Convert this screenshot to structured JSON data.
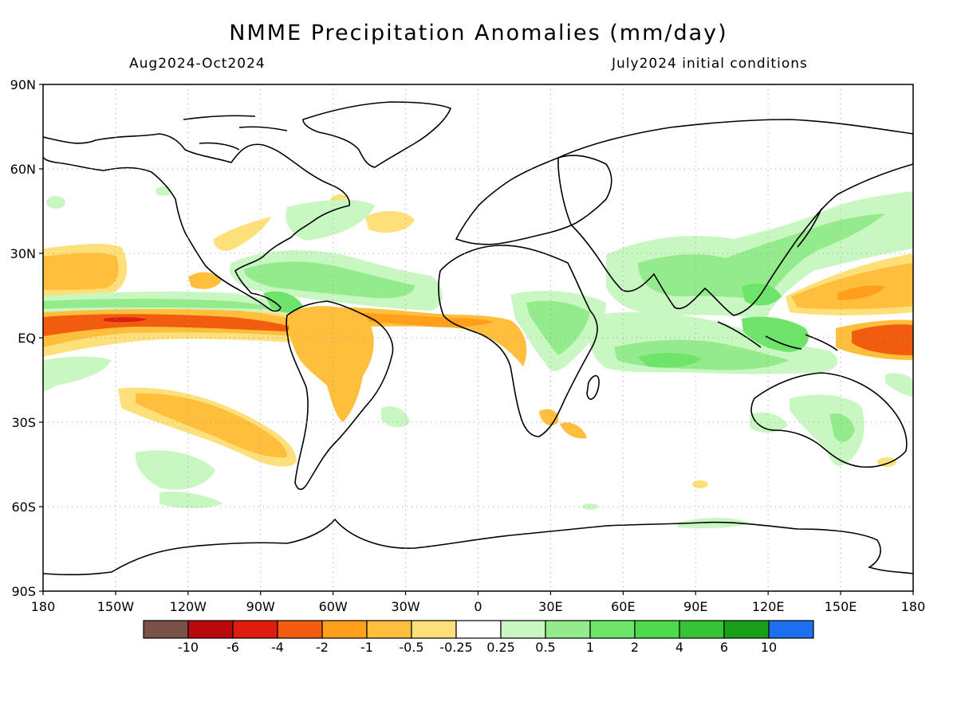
{
  "title": "NMME Precipitation Anomalies (mm/day)",
  "period": "Aug2024-Oct2024",
  "init": "July2024 initial conditions",
  "lat_ticks": [
    "90N",
    "60N",
    "30N",
    "EQ",
    "30S",
    "60S",
    "90S"
  ],
  "lon_ticks": [
    "180",
    "150W",
    "120W",
    "90W",
    "60W",
    "30W",
    "0",
    "30E",
    "60E",
    "90E",
    "120E",
    "150E",
    "180"
  ],
  "colorbar": {
    "colors": [
      "#7a5245",
      "#b80a0a",
      "#dd1e0e",
      "#f25c0f",
      "#ff9f1a",
      "#ffbe3c",
      "#fde07a",
      "#ffffff",
      "#c9f7c2",
      "#93eb8c",
      "#6ee46b",
      "#4ddb4c",
      "#36c436",
      "#17a11a",
      "#1e6ff0"
    ],
    "labels": [
      "-10",
      "-6",
      "-4",
      "-2",
      "-1",
      "-0.5",
      "-0.25",
      "0.25",
      "0.5",
      "1",
      "2",
      "4",
      "6",
      "10"
    ]
  },
  "colors": {
    "dry_light": "#fde07a",
    "dry_med": "#ffbe3c",
    "dry_strong": "#ff9f1a",
    "dry_very": "#f25c0f",
    "dry_extreme": "#dd1e0e",
    "wet_light": "#c9f7c2",
    "wet_med": "#93eb8c",
    "wet_strong": "#6ee46b",
    "wet_very": "#4ddb4c"
  }
}
